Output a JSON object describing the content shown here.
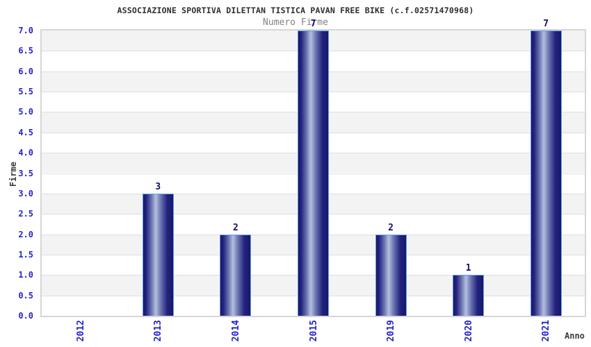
{
  "chart_data": {
    "type": "bar",
    "title": "ASSOCIAZIONE SPORTIVA DILETTAN TISTICA PAVAN FREE BIKE (c.f.02571470968)",
    "subtitle": "Numero Firme",
    "xlabel": "Anno",
    "ylabel": "Firme",
    "categories": [
      "2012",
      "2013",
      "2014",
      "2015",
      "2019",
      "2020",
      "2021"
    ],
    "values": [
      0,
      3,
      2,
      7,
      2,
      1,
      7
    ],
    "ylim": [
      0,
      7
    ],
    "ytick_step": 0.5,
    "ytick_label_format": "one_decimal",
    "bar_value_labels_shown": true,
    "zero_value_bars_hidden": true,
    "grid": "alternating horizontal bands every 0.5, gray top band",
    "legend": "none",
    "x_tick_rotation_degrees": 90
  },
  "colors": {
    "background": "#ffffff",
    "title_text": "#2e2e2e",
    "subtitle_text": "#828282",
    "axis_title_text": "#3a3a3a",
    "tick_label_blue": "#2323cd",
    "bar_value_label_navy": "#10106a",
    "bar_dark_navy": "#17176b",
    "bar_highlight": "#b4c0de",
    "bar_border_light_blue": "#5fa0e8",
    "band_gray": "#f3f3f3",
    "band_white": "#ffffff",
    "gridline": "#dedede",
    "plot_border": "#d6d6d6"
  }
}
